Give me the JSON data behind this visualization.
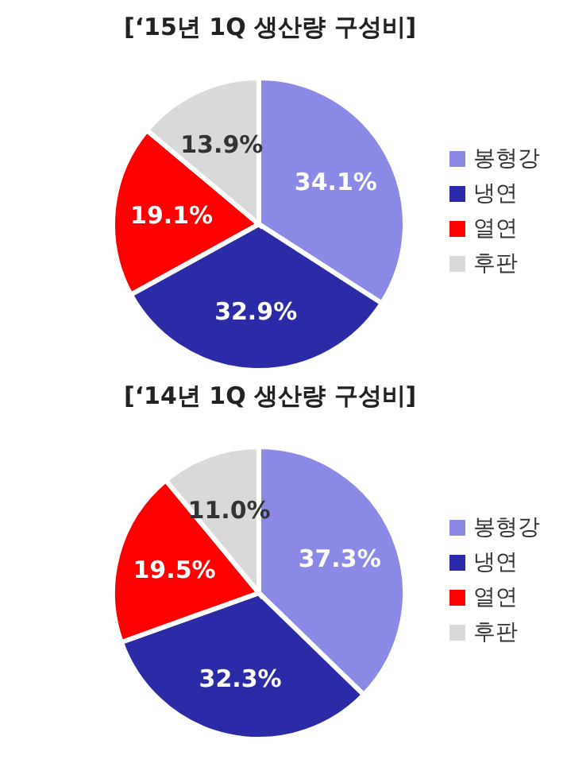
{
  "chart_data": [
    {
      "type": "pie",
      "title": "[‘15년 1Q 생산량 구성비]",
      "categories": [
        "봉형강",
        "냉연",
        "열연",
        "후판"
      ],
      "values": [
        34.1,
        32.9,
        19.1,
        13.9
      ],
      "value_labels": [
        "34.1%",
        "32.9%",
        "19.1%",
        "13.9%"
      ],
      "colors": [
        "#8a8ae6",
        "#2b2ba8",
        "#ff0000",
        "#d9d9d9"
      ],
      "legend": "right"
    },
    {
      "type": "pie",
      "title": "[‘14년 1Q 생산량 구성비]",
      "categories": [
        "봉형강",
        "냉연",
        "열연",
        "후판"
      ],
      "values": [
        37.3,
        32.3,
        19.5,
        11.0
      ],
      "value_labels": [
        "37.3%",
        "32.3%",
        "19.5%",
        "11.0%"
      ],
      "colors": [
        "#8a8ae6",
        "#2b2ba8",
        "#ff0000",
        "#d9d9d9"
      ],
      "legend": "right"
    }
  ]
}
